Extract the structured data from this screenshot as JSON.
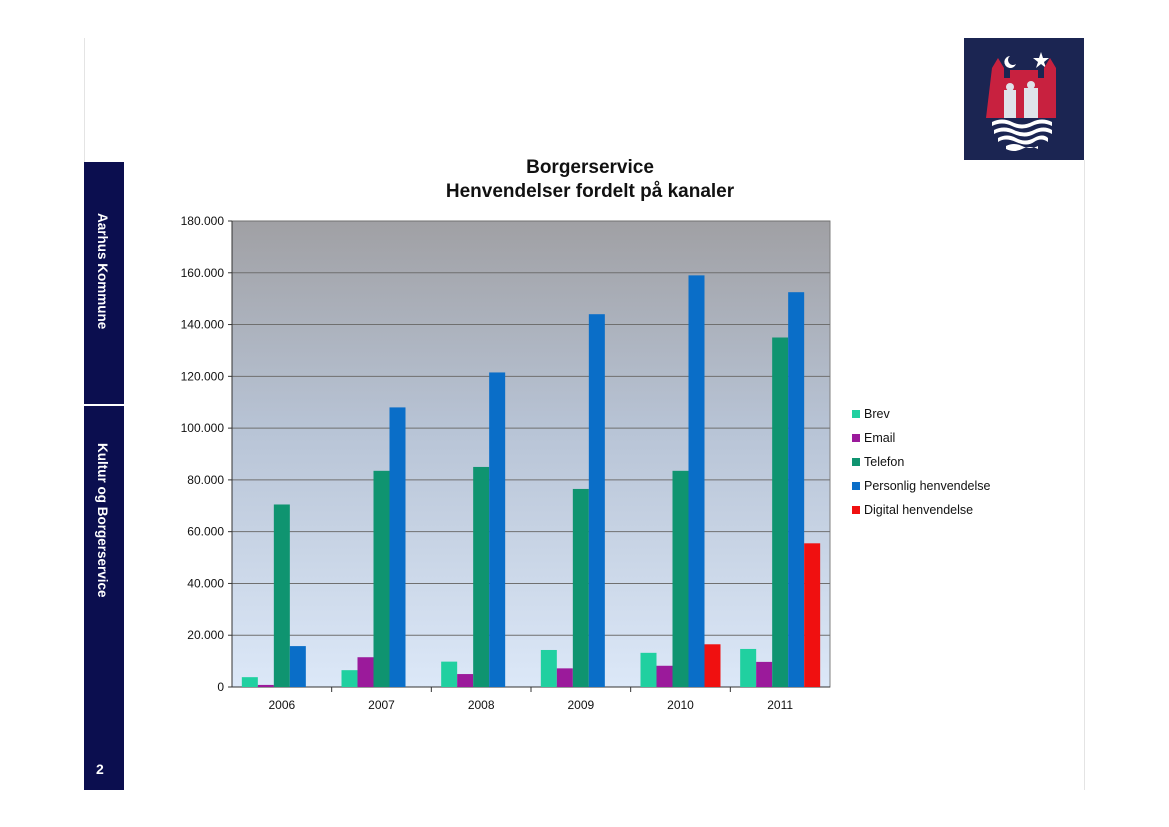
{
  "sidebar": {
    "org_label": "Aarhus Kommune",
    "dept_label": "Kultur og Borgerservice",
    "page_number": "2"
  },
  "logo": {
    "name": "aarhus-coat-of-arms-logo",
    "background": "#1b2552",
    "accent": "#c8213f"
  },
  "chart_data": {
    "type": "bar",
    "title": "Borgerservice",
    "subtitle": "Henvendelser fordelt på kanaler",
    "categories": [
      "2006",
      "2007",
      "2008",
      "2009",
      "2010",
      "2011"
    ],
    "ylim": [
      0,
      180000
    ],
    "yticks": [
      0,
      20000,
      40000,
      60000,
      80000,
      100000,
      120000,
      140000,
      160000,
      180000
    ],
    "ytick_labels": [
      "0",
      "20.000",
      "40.000",
      "60.000",
      "80.000",
      "100.000",
      "120.000",
      "140.000",
      "160.000",
      "180.000"
    ],
    "grid": true,
    "legend_position": "right",
    "series": [
      {
        "name": "Brev",
        "color": "#20d0a0",
        "values": [
          3800,
          6500,
          9800,
          14300,
          13200,
          14700
        ]
      },
      {
        "name": "Email",
        "color": "#9b1a9b",
        "values": [
          800,
          11500,
          5000,
          7200,
          8200,
          9700
        ]
      },
      {
        "name": "Telefon",
        "color": "#0f9470",
        "values": [
          70500,
          83500,
          85000,
          76500,
          83500,
          135000
        ]
      },
      {
        "name": "Personlig henvendelse",
        "color": "#0a6ec8",
        "values": [
          15800,
          108000,
          121500,
          144000,
          159000,
          152500
        ]
      },
      {
        "name": "Digital henvendelse",
        "color": "#f01010",
        "values": [
          0,
          0,
          0,
          0,
          16500,
          55500
        ]
      }
    ]
  }
}
